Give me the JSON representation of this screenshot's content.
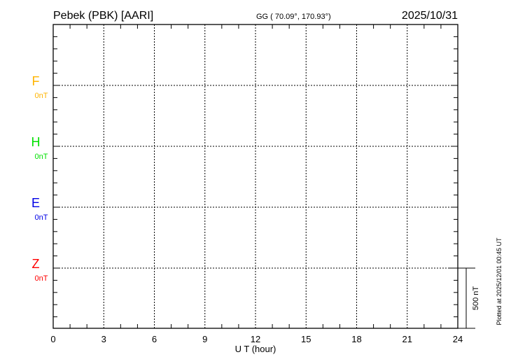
{
  "header": {
    "station": "Pebek (PBK)  [AARI]",
    "coords": "GG ( 70.09°, 170.93°)",
    "date": "2025/10/31"
  },
  "footer": {
    "plotted": "Plotted at 2025/12/01 00:45 UT"
  },
  "chart_data": {
    "type": "line",
    "title": "Pebek (PBK)  [AARI]",
    "xlabel": "U T (hour)",
    "xlim": [
      0,
      24
    ],
    "xticks": [
      "0",
      "3",
      "6",
      "9",
      "12",
      "15",
      "18",
      "21",
      "24"
    ],
    "grid": true,
    "scale_bar": "500 nT",
    "series": [
      {
        "name": "F",
        "baseline_label": "0nT",
        "color": "#ffb400",
        "values": []
      },
      {
        "name": "H",
        "baseline_label": "0nT",
        "color": "#00e000",
        "values": []
      },
      {
        "name": "E",
        "baseline_label": "0nT",
        "color": "#0000e6",
        "values": []
      },
      {
        "name": "Z",
        "baseline_label": "0nT",
        "color": "#ff0000",
        "values": []
      }
    ]
  }
}
